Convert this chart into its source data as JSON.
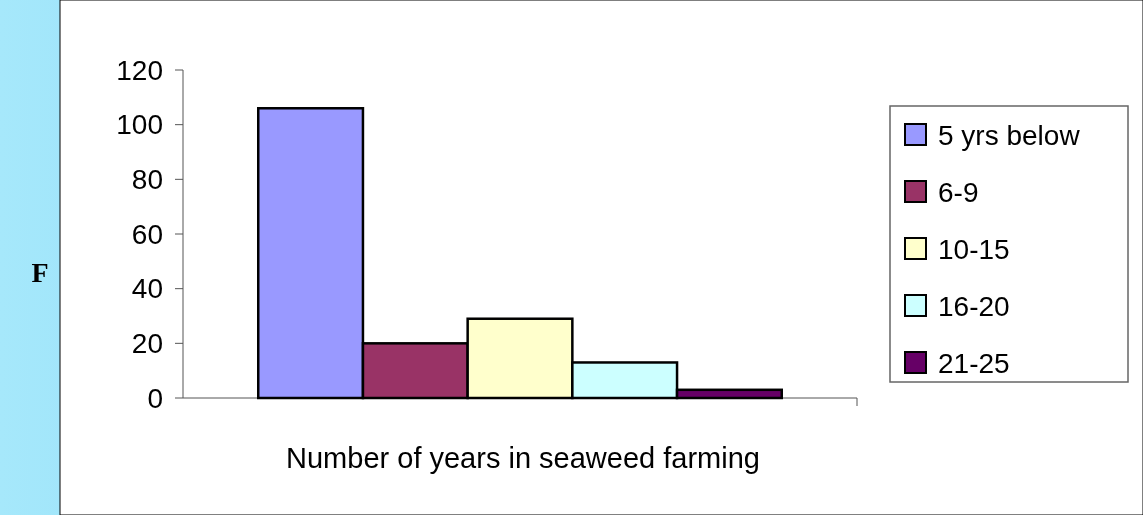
{
  "chart_data": {
    "type": "bar",
    "xlabel": "Number of years in seaweed farming",
    "ylabel": "F",
    "categories": [
      null
    ],
    "series": [
      {
        "name": "5 yrs below",
        "color": "#9999ff",
        "values": [
          106
        ]
      },
      {
        "name": "6-9",
        "color": "#993366",
        "values": [
          20
        ]
      },
      {
        "name": "10-15",
        "color": "#ffffcc",
        "values": [
          29
        ]
      },
      {
        "name": "16-20",
        "color": "#ccffff",
        "values": [
          13
        ]
      },
      {
        "name": "21-25",
        "color": "#660066",
        "values": [
          3
        ]
      }
    ],
    "ylim": [
      0,
      120
    ],
    "yticks": [
      0,
      20,
      40,
      60,
      80,
      100,
      120
    ],
    "grid": false,
    "legend": "right"
  }
}
